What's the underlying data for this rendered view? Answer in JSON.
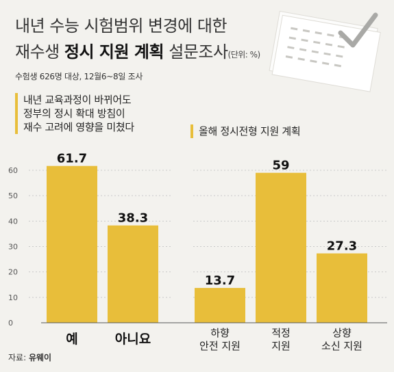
{
  "title_line1": "내년 수능 시험범위 변경에 대한",
  "title_line2_pre": "재수생 ",
  "title_line2_bold": "정시 지원 계획",
  "title_line2_post": " 설문조사",
  "unit": "(단위: %)",
  "survey_note": "수험생 626명 대상, 12월6~8일 조사",
  "source_label": "자료:",
  "source_name": "유웨이",
  "chart_data": [
    {
      "type": "bar",
      "title": "내년 교육과정이 바뀌어도 정부의 정시 확대 방침이 재수 고려에 영향을 미쳤다",
      "title_lines": [
        "내년 교육과정이 바뀌어도",
        "정부의 정시 확대 방침이",
        "재수 고려에 영향을 미쳤다"
      ],
      "categories": [
        "예",
        "아니요"
      ],
      "values": [
        61.7,
        38.3
      ],
      "value_labels": [
        "61.7",
        "38.3"
      ],
      "yticks": [
        0,
        10,
        20,
        30,
        40,
        50,
        60
      ],
      "ylim": [
        0,
        60
      ],
      "grid": true
    },
    {
      "type": "bar",
      "title": "올해 정시전형 지원 계획",
      "categories": [
        "하향 안전 지원",
        "적정 지원",
        "상향 소신 지원"
      ],
      "category_lines": [
        [
          "하향",
          "안전 지원"
        ],
        [
          "적정",
          "지원"
        ],
        [
          "상향",
          "소신 지원"
        ]
      ],
      "values": [
        13.7,
        59,
        27.3
      ],
      "value_labels": [
        "13.7",
        "59",
        "27.3"
      ],
      "ylim": [
        0,
        60
      ],
      "grid": true
    }
  ],
  "colors": {
    "bar": "#e8be3a",
    "accent": "#e8be3a",
    "grid": "#c9c9c9",
    "background": "#f3f2ee"
  },
  "decoration": "checklist-paper-icon"
}
